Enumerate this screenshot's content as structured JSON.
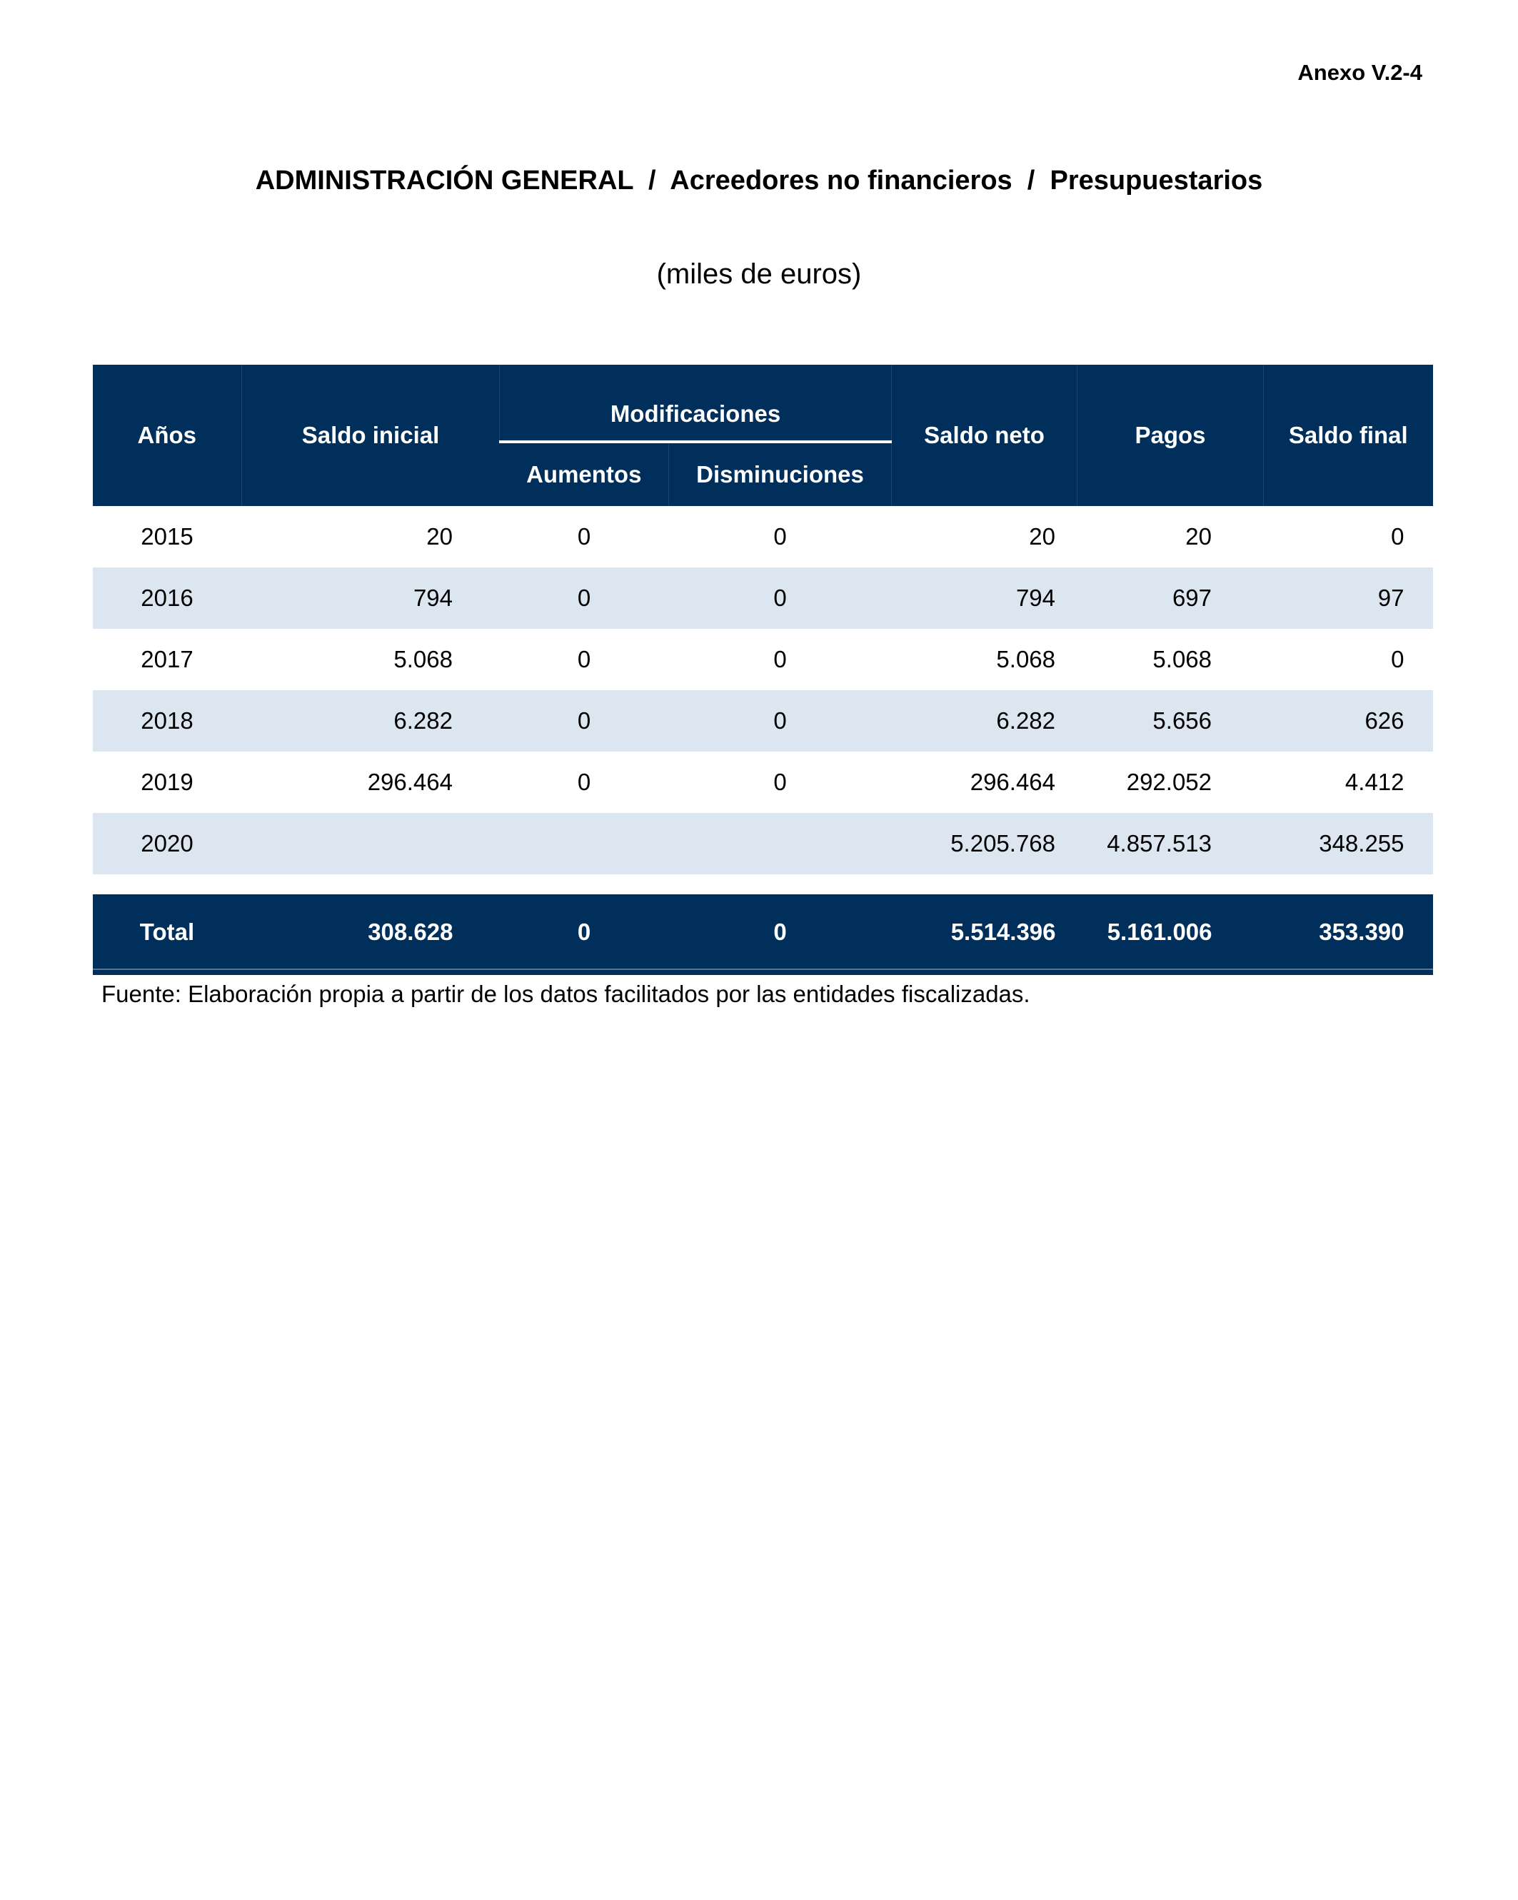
{
  "annex": "Anexo V.2-4",
  "title": "ADMINISTRACIÓN GENERAL  /  Acreedores no financieros  /  Presupuestarios",
  "subtitle": "(miles de euros)",
  "colors": {
    "header": "#002f5c",
    "alt_row": "#dce6f1"
  },
  "table": {
    "headers": {
      "years": "Años",
      "initial": "Saldo inicial",
      "modifications": "Modificaciones",
      "increases": "Aumentos",
      "decreases": "Disminuciones",
      "net": "Saldo neto",
      "payments": "Pagos",
      "final": "Saldo final"
    },
    "rows": [
      [
        "2015",
        "20",
        "0",
        "0",
        "20",
        "20",
        "0"
      ],
      [
        "2016",
        "794",
        "0",
        "0",
        "794",
        "697",
        "97"
      ],
      [
        "2017",
        "5.068",
        "0",
        "0",
        "5.068",
        "5.068",
        "0"
      ],
      [
        "2018",
        "6.282",
        "0",
        "0",
        "6.282",
        "5.656",
        "626"
      ],
      [
        "2019",
        "296.464",
        "0",
        "0",
        "296.464",
        "292.052",
        "4.412"
      ],
      [
        "2020",
        "",
        "",
        "",
        "5.205.768",
        "4.857.513",
        "348.255"
      ]
    ],
    "total": [
      "Total",
      "308.628",
      "0",
      "0",
      "5.514.396",
      "5.161.006",
      "353.390"
    ]
  },
  "source": "Fuente: Elaboración propia a partir de los datos facilitados por las entidades fiscalizadas."
}
